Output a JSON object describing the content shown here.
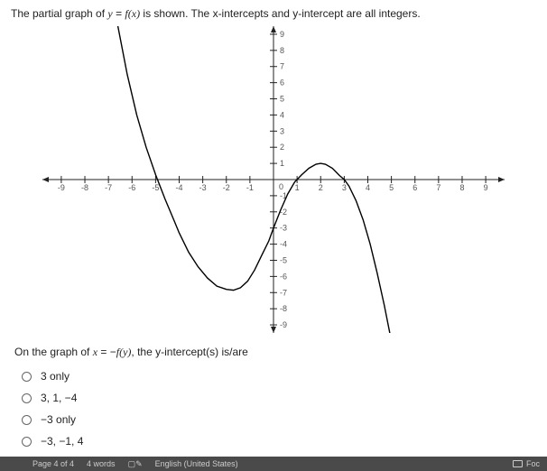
{
  "prompt_pre": "The partial graph of ",
  "prompt_eq_y": "y",
  "prompt_eq_eq": " = ",
  "prompt_eq_fx": "f(x)",
  "prompt_post": " is shown. The x-intercepts and y-intercept are all integers.",
  "question_pre": "On the graph of ",
  "question_eqx": "x",
  "question_eq": " = ",
  "question_neg": "−",
  "question_fy": "f(y)",
  "question_post": ", the y-intercept(s) is/are",
  "options": [
    "3 only",
    "3, 1, −4",
    "−3 only",
    "−3, −1, 4"
  ],
  "graph": {
    "type": "line",
    "x_range": [
      -9.8,
      9.8
    ],
    "y_range": [
      -9.5,
      9.5
    ],
    "x_ticks": [
      -9,
      -8,
      -7,
      -6,
      -5,
      -4,
      -3,
      -2,
      -1,
      0,
      1,
      2,
      3,
      4,
      5,
      6,
      7,
      8,
      9
    ],
    "y_ticks": [
      -9,
      -8,
      -7,
      -6,
      -5,
      -4,
      -3,
      -2,
      -1,
      0,
      1,
      2,
      3,
      4,
      5,
      6,
      7,
      8,
      9
    ],
    "axis_color": "#222222",
    "tick_color": "#222222",
    "tick_len": 4,
    "curve_color": "#000000",
    "curve_width": 1.4,
    "label_color": "#555555",
    "label_fontsize": 9,
    "curve_points": [
      [
        -7.0,
        13.0
      ],
      [
        -6.6,
        9.5
      ],
      [
        -6.2,
        6.5
      ],
      [
        -5.8,
        4.0
      ],
      [
        -5.4,
        2.0
      ],
      [
        -5.0,
        0.3
      ],
      [
        -4.6,
        -1.2
      ],
      [
        -4.2,
        -2.6
      ],
      [
        -4.0,
        -3.3
      ],
      [
        -3.6,
        -4.5
      ],
      [
        -3.2,
        -5.4
      ],
      [
        -2.8,
        -6.1
      ],
      [
        -2.4,
        -6.6
      ],
      [
        -2.0,
        -6.8
      ],
      [
        -1.7,
        -6.85
      ],
      [
        -1.4,
        -6.7
      ],
      [
        -1.1,
        -6.3
      ],
      [
        -0.8,
        -5.6
      ],
      [
        -0.5,
        -4.7
      ],
      [
        -0.2,
        -3.8
      ],
      [
        0.0,
        -3.0
      ],
      [
        0.3,
        -1.9
      ],
      [
        0.6,
        -0.9
      ],
      [
        0.9,
        -0.15
      ],
      [
        1.0,
        0.0
      ],
      [
        1.2,
        0.3
      ],
      [
        1.5,
        0.7
      ],
      [
        1.8,
        0.95
      ],
      [
        2.0,
        1.0
      ],
      [
        2.2,
        0.95
      ],
      [
        2.5,
        0.7
      ],
      [
        2.8,
        0.25
      ],
      [
        3.0,
        0.0
      ],
      [
        3.2,
        -0.4
      ],
      [
        3.5,
        -1.3
      ],
      [
        3.8,
        -2.5
      ],
      [
        4.1,
        -4.0
      ],
      [
        4.4,
        -5.8
      ],
      [
        4.7,
        -7.8
      ],
      [
        5.0,
        -10.0
      ],
      [
        5.2,
        -12.0
      ]
    ]
  },
  "status": {
    "page": "Page 4 of 4",
    "words": "4 words",
    "lang": "English (United States)",
    "focus": "Foc"
  },
  "colors": {
    "statusbar_bg": "#4a4a4a",
    "statusbar_text": "#cccccc"
  }
}
